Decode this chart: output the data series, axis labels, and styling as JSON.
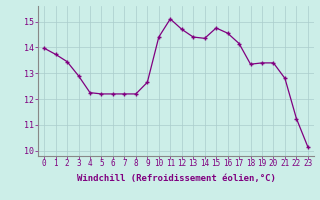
{
  "x": [
    0,
    1,
    2,
    3,
    4,
    5,
    6,
    7,
    8,
    9,
    10,
    11,
    12,
    13,
    14,
    15,
    16,
    17,
    18,
    19,
    20,
    21,
    22,
    23
  ],
  "y": [
    13.97,
    13.73,
    13.45,
    12.9,
    12.25,
    12.2,
    12.2,
    12.2,
    12.2,
    12.65,
    14.4,
    15.1,
    14.7,
    14.4,
    14.35,
    14.75,
    14.55,
    14.15,
    13.35,
    13.4,
    13.4,
    12.8,
    11.25,
    10.15
  ],
  "xlim": [
    -0.5,
    23.5
  ],
  "ylim": [
    9.8,
    15.6
  ],
  "yticks": [
    10,
    11,
    12,
    13,
    14,
    15
  ],
  "xticks": [
    0,
    1,
    2,
    3,
    4,
    5,
    6,
    7,
    8,
    9,
    10,
    11,
    12,
    13,
    14,
    15,
    16,
    17,
    18,
    19,
    20,
    21,
    22,
    23
  ],
  "xlabel": "Windchill (Refroidissement éolien,°C)",
  "line_color": "#800080",
  "marker": "+",
  "bg_color": "#cceee8",
  "grid_color": "#aacccc",
  "tick_color": "#800080",
  "label_color": "#800080",
  "tick_fontsize": 5.5,
  "ylabel_fontsize": 6.5,
  "xlabel_fontsize": 6.5
}
